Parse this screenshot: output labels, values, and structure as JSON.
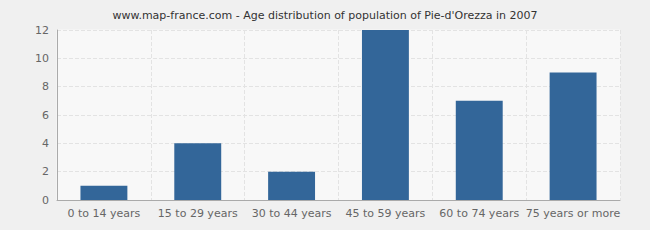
{
  "chart_data": {
    "type": "bar",
    "title": "www.map-france.com - Age distribution of population of Pie-d'Orezza in 2007",
    "categories": [
      "0 to 14 years",
      "15 to 29 years",
      "30 to 44 years",
      "45 to 59 years",
      "60 to 74 years",
      "75 years or more"
    ],
    "values": [
      1,
      4,
      2,
      12,
      7,
      9
    ],
    "color": "#336699",
    "ylim": [
      0,
      12
    ],
    "yticks": [
      0,
      2,
      4,
      6,
      8,
      10,
      12
    ],
    "grid": true
  }
}
